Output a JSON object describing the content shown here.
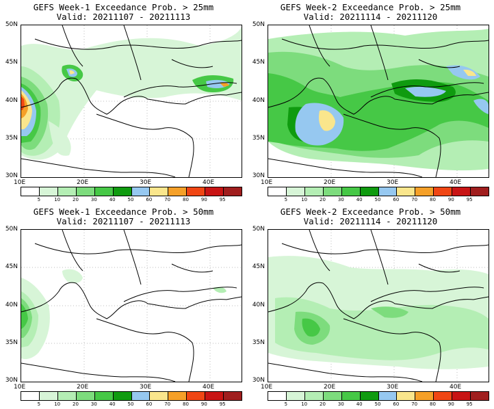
{
  "panels": [
    {
      "title": "GEFS Week-1 Exceedance Prob. > 25mm",
      "valid": "Valid: 20211107 - 20211113"
    },
    {
      "title": "GEFS Week-2 Exceedance Prob. > 25mm",
      "valid": "Valid: 20211114 - 20211120"
    },
    {
      "title": "GEFS Week-1 Exceedance Prob. > 50mm",
      "valid": "Valid: 20211107 - 20211113"
    },
    {
      "title": "GEFS Week-2 Exceedance Prob. > 50mm",
      "valid": "Valid: 20211114 - 20211120"
    }
  ],
  "lat_labels": [
    "50N",
    "45N",
    "40N",
    "35N",
    "30N"
  ],
  "lon_labels": [
    "10E",
    "20E",
    "30E",
    "40E"
  ],
  "legend": {
    "ticks": [
      "5",
      "10",
      "20",
      "30",
      "40",
      "50",
      "60",
      "70",
      "80",
      "90",
      "95"
    ],
    "colors": [
      "#ffffff",
      "#d7f5d7",
      "#b4eeb4",
      "#7ddc7d",
      "#46c846",
      "#0f9b0f",
      "#96c8f0",
      "#fae68c",
      "#f5a028",
      "#f04614",
      "#c81414",
      "#a01e1e"
    ]
  }
}
